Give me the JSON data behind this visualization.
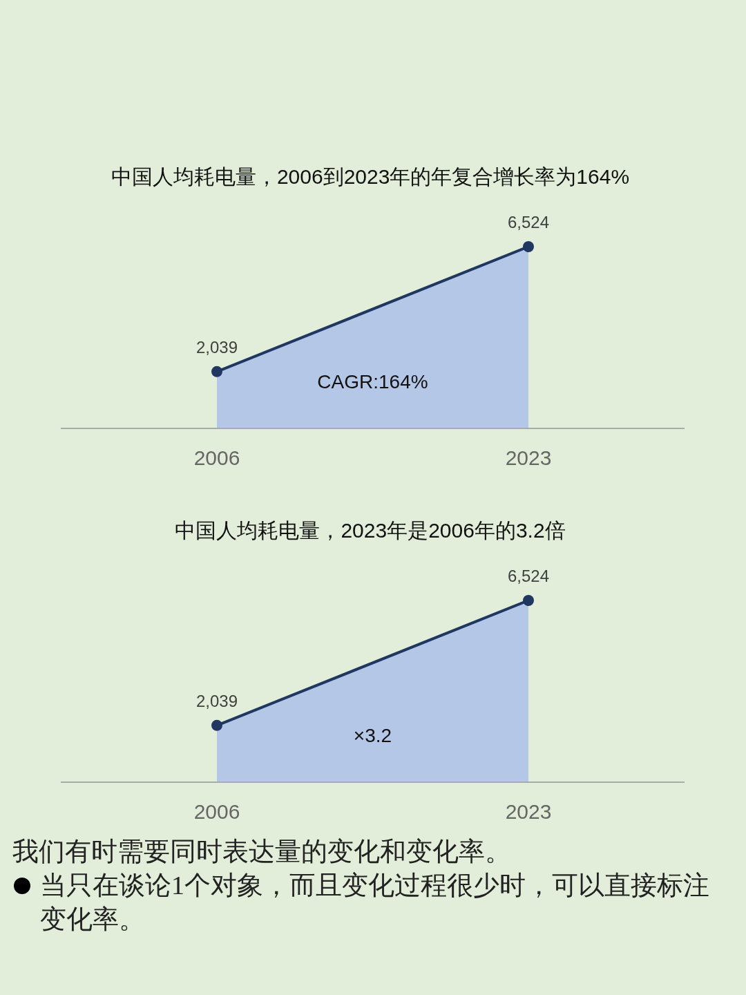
{
  "chart_data": [
    {
      "type": "area",
      "title": "中国人均耗电量，2006到2023年的年复合增长率为164%",
      "categories": [
        "2006",
        "2023"
      ],
      "values": [
        2039,
        6524
      ],
      "value_labels": [
        "2,039",
        "6,524"
      ],
      "color": "#b4c7e7",
      "marker": "circle",
      "annotations": [
        "CAGR:164%"
      ]
    },
    {
      "type": "area",
      "title": "中国人均耗电量，2023年是2006年的3.2倍",
      "categories": [
        "2006",
        "2023"
      ],
      "values": [
        2039,
        6524
      ],
      "value_labels": [
        "2,039",
        "6,524"
      ],
      "color": "#b4c7e7",
      "marker": "circle",
      "annotations": [
        "×3.2"
      ]
    },
    {
      "type": "other",
      "annotations": [
        "我们有时需要同时表达量的变化和变化率。",
        "当只在谈论1个对象，而且变化过程很少时，可以直接标注变化率。"
      ]
    }
  ]
}
